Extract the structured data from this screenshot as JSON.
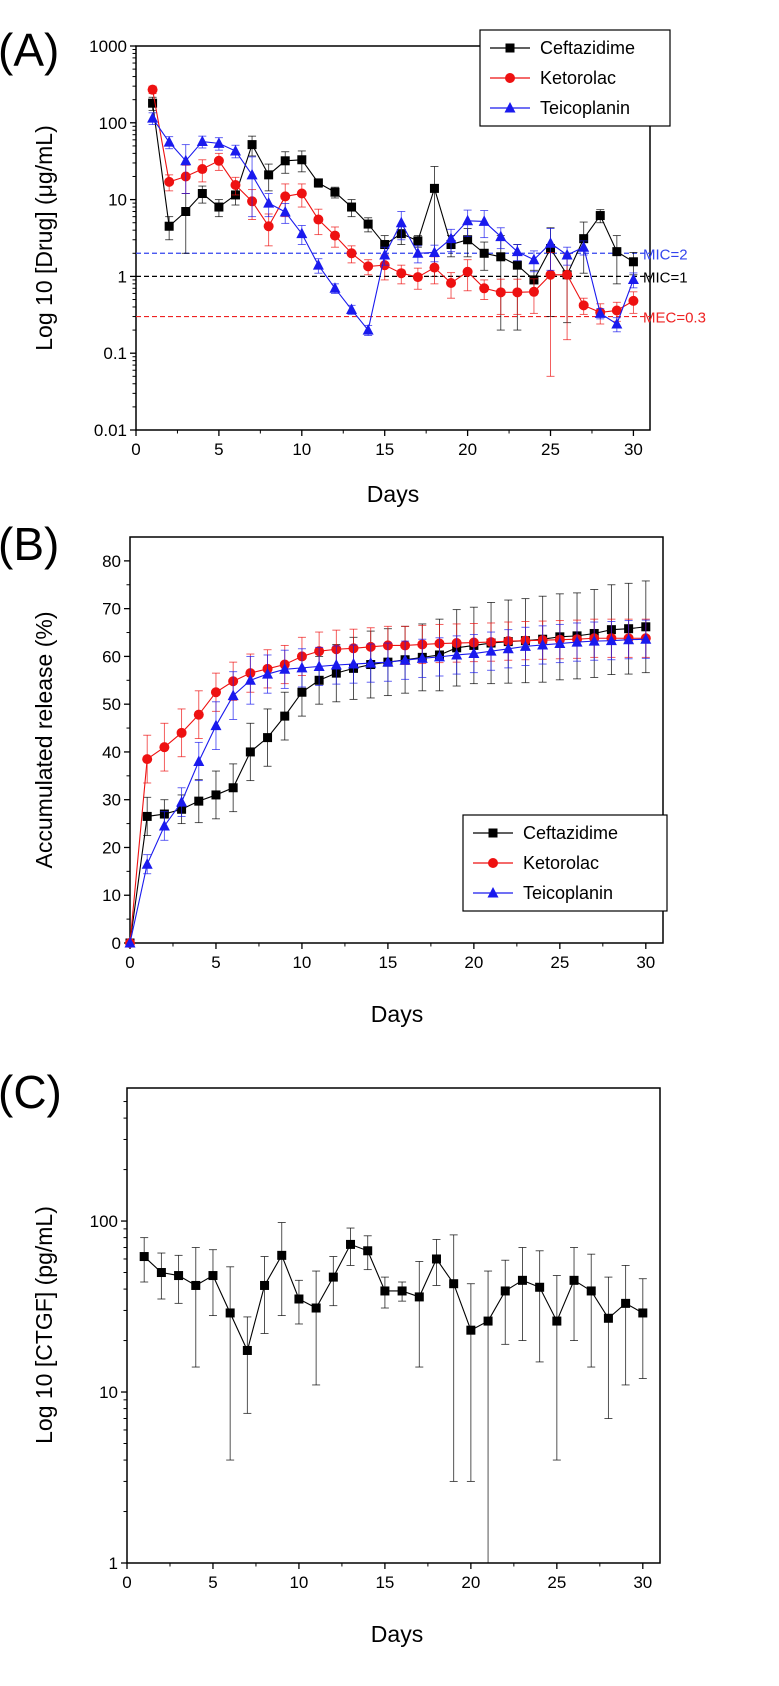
{
  "chart_data": [
    {
      "panel_label": "(A)",
      "type": "line",
      "scale": "log",
      "xlabel": "Days",
      "ylabel": "Log 10 [Drug] (μg/mL)",
      "xlim": [
        0,
        31
      ],
      "ylim": [
        0.01,
        1000
      ],
      "xticks": [
        "0",
        "5",
        "10",
        "15",
        "20",
        "25",
        "30"
      ],
      "yticks": [
        "0.01",
        "0.1",
        "1",
        "10",
        "100",
        "1000"
      ],
      "legend_position": "top-right",
      "x": [
        1,
        2,
        3,
        4,
        5,
        6,
        7,
        8,
        9,
        10,
        11,
        12,
        13,
        14,
        15,
        16,
        17,
        18,
        19,
        20,
        21,
        22,
        23,
        24,
        25,
        26,
        27,
        28,
        29,
        30
      ],
      "series": [
        {
          "name": "Ceftazidime",
          "color": "#000000",
          "marker": "square",
          "values": [
            180,
            4.5,
            7,
            12,
            8,
            11.5,
            52,
            21,
            32,
            33,
            16.5,
            12.5,
            8,
            4.8,
            2.6,
            3.6,
            2.9,
            14,
            2.6,
            3,
            2,
            1.8,
            1.4,
            0.9,
            2.3,
            1.05,
            3.1,
            6.2,
            2.1,
            1.55
          ],
          "errors": [
            35,
            1.5,
            5,
            3,
            2,
            3,
            15,
            8,
            10,
            10,
            2,
            2,
            2,
            1,
            0.8,
            1,
            0.5,
            13,
            0.8,
            1.2,
            0.8,
            1.6,
            1.2,
            0.3,
            2,
            0.8,
            2,
            1.2,
            1.3,
            0.5
          ]
        },
        {
          "name": "Ketorolac",
          "color": "#ee1111",
          "marker": "circle",
          "values": [
            270,
            17,
            20,
            25,
            32,
            15.5,
            9.5,
            4.5,
            11,
            12,
            5.5,
            3.4,
            2,
            1.35,
            1.4,
            1.1,
            0.98,
            1.3,
            0.82,
            1.15,
            0.7,
            0.62,
            0.62,
            0.63,
            1.05,
            1.05,
            0.42,
            0.34,
            0.36,
            0.48
          ],
          "errors": [
            30,
            4,
            8,
            8,
            8,
            4,
            4,
            2,
            5,
            4,
            2,
            1,
            0.5,
            0.3,
            0.5,
            0.3,
            0.3,
            0.5,
            0.3,
            0.5,
            0.2,
            0.3,
            0.3,
            0.3,
            1,
            0.9,
            0.1,
            0.1,
            0.1,
            0.15
          ]
        },
        {
          "name": "Teicoplanin",
          "color": "#1a1aee",
          "marker": "triangle",
          "values": [
            115,
            56,
            32,
            57,
            54,
            43,
            21,
            9,
            6.9,
            3.6,
            1.4,
            0.7,
            0.37,
            0.2,
            1.9,
            5,
            2,
            2.05,
            3.1,
            5.3,
            5.2,
            3.3,
            2.1,
            1.65,
            2.7,
            1.9,
            2.4,
            0.33,
            0.24,
            0.91
          ],
          "errors": [
            20,
            10,
            20,
            10,
            10,
            8,
            15,
            3,
            2,
            1,
            0.3,
            0.1,
            0.05,
            0.03,
            0.5,
            2,
            0.5,
            0.5,
            1,
            2,
            2,
            1,
            0.5,
            0.5,
            1.5,
            0.5,
            0.5,
            0.05,
            0.05,
            0.2
          ]
        }
      ],
      "reference_lines": [
        {
          "label": "MIC=2",
          "value": 2,
          "color": "#3344ee"
        },
        {
          "label": "MIC=1",
          "value": 1,
          "color": "#000000"
        },
        {
          "label": "MEC=0.3",
          "value": 0.3,
          "color": "#ee2222"
        }
      ]
    },
    {
      "panel_label": "(B)",
      "type": "line",
      "scale": "linear",
      "xlabel": "Days",
      "ylabel": "Accumulated release (%)",
      "xlim": [
        0,
        31
      ],
      "ylim": [
        0,
        85
      ],
      "xticks": [
        "0",
        "5",
        "10",
        "15",
        "20",
        "25",
        "30"
      ],
      "yticks": [
        "0",
        "10",
        "20",
        "30",
        "40",
        "50",
        "60",
        "70",
        "80"
      ],
      "legend_position": "bottom-right",
      "x": [
        0,
        1,
        2,
        3,
        4,
        5,
        6,
        7,
        8,
        9,
        10,
        11,
        12,
        13,
        14,
        15,
        16,
        17,
        18,
        19,
        20,
        21,
        22,
        23,
        24,
        25,
        26,
        27,
        28,
        29,
        30
      ],
      "series": [
        {
          "name": "Ceftazidime",
          "color": "#000000",
          "marker": "square",
          "values": [
            0,
            26.5,
            27,
            28,
            29.7,
            31,
            32.5,
            40,
            43,
            47.5,
            52.5,
            55,
            56.5,
            57.5,
            58.3,
            58.8,
            59.3,
            59.8,
            60.3,
            61.8,
            62.3,
            62.8,
            63.1,
            63.3,
            63.6,
            64.1,
            64.3,
            64.8,
            65.6,
            65.8,
            66.2
          ],
          "errors": [
            0,
            4,
            3,
            3,
            4.5,
            5,
            5,
            6,
            6,
            5,
            5,
            5,
            6,
            6.5,
            7,
            7,
            7,
            7,
            7.5,
            8,
            8,
            8.5,
            8.7,
            8.8,
            9,
            9,
            9,
            9.2,
            9.4,
            9.5,
            9.6
          ]
        },
        {
          "name": "Ketorolac",
          "color": "#ee1111",
          "marker": "circle",
          "values": [
            0,
            38.5,
            41,
            44,
            47.8,
            52.5,
            54.8,
            56.5,
            57.4,
            58.3,
            60,
            61.1,
            61.5,
            61.7,
            62,
            62.3,
            62.3,
            62.5,
            62.7,
            62.8,
            62.9,
            63,
            63.2,
            63.3,
            63.4,
            63.5,
            63.6,
            63.8,
            63.8,
            63.8,
            63.8
          ],
          "errors": [
            0,
            5,
            5,
            5,
            5,
            4,
            4,
            4,
            4,
            4,
            4,
            4,
            4,
            4,
            4,
            4,
            4,
            4,
            4,
            4,
            4,
            4,
            4,
            4,
            4,
            4,
            4,
            4,
            4,
            4,
            4
          ]
        },
        {
          "name": "Teicoplanin",
          "color": "#1a1aee",
          "marker": "triangle",
          "values": [
            0,
            16.5,
            24.5,
            29.5,
            38,
            45.5,
            51.8,
            55,
            56.3,
            57.3,
            57.6,
            57.9,
            58.2,
            58.4,
            58.6,
            58.8,
            59.2,
            59.6,
            59.9,
            60.3,
            60.6,
            61.1,
            61.6,
            62.1,
            62.4,
            62.7,
            63,
            63.2,
            63.3,
            63.5,
            63.6
          ],
          "errors": [
            0,
            2,
            3,
            3,
            4,
            5,
            5,
            5,
            4,
            4,
            4,
            4,
            4,
            4,
            4,
            4,
            4,
            4,
            4,
            4,
            4,
            4,
            4,
            4,
            4,
            4,
            4,
            4,
            4,
            4,
            4
          ]
        }
      ]
    },
    {
      "panel_label": "(C)",
      "type": "line",
      "scale": "log",
      "xlabel": "Days",
      "ylabel": "Log 10 [CTGF] (pg/mL)",
      "xlim": [
        0,
        31
      ],
      "ylim": [
        1,
        600
      ],
      "xticks": [
        "0",
        "5",
        "10",
        "15",
        "20",
        "25",
        "30"
      ],
      "yticks": [
        "1",
        "10",
        "100"
      ],
      "x": [
        1,
        2,
        3,
        4,
        5,
        6,
        7,
        8,
        9,
        10,
        11,
        12,
        13,
        14,
        15,
        16,
        17,
        18,
        19,
        20,
        21,
        22,
        23,
        24,
        25,
        26,
        27,
        28,
        29,
        30
      ],
      "series": [
        {
          "name": "CTGF",
          "color": "#000000",
          "marker": "square",
          "values": [
            62,
            50,
            48,
            42,
            48,
            29,
            17.5,
            42,
            63,
            35,
            31,
            47,
            73,
            67,
            39,
            39,
            36,
            60,
            43,
            23,
            26,
            39,
            45,
            41,
            26,
            45,
            39,
            27,
            33,
            29
          ],
          "errors": [
            18,
            15,
            15,
            28,
            20,
            25,
            10,
            20,
            35,
            10,
            20,
            15,
            18,
            15,
            8,
            5,
            22,
            18,
            40,
            20,
            25,
            20,
            25,
            26,
            22,
            25,
            25,
            20,
            22,
            17
          ]
        }
      ]
    }
  ]
}
